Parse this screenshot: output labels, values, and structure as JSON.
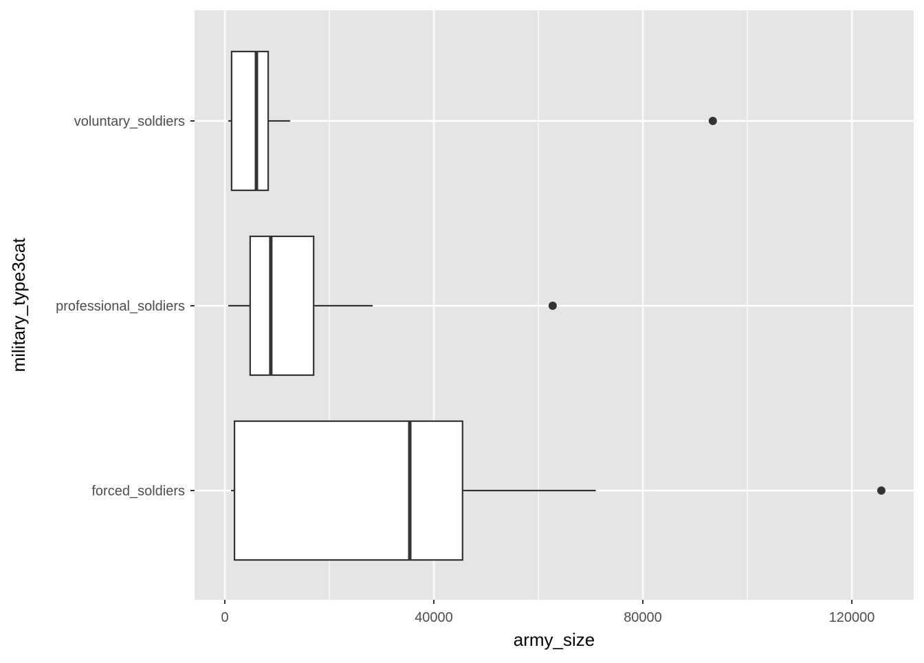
{
  "chart_data": {
    "type": "boxplot",
    "orientation": "horizontal",
    "title": "",
    "xlabel": "army_size",
    "ylabel": "military_type3cat",
    "xlim": [
      -5800,
      132000
    ],
    "x_ticks": [
      0,
      40000,
      80000,
      120000
    ],
    "x_tick_labels": [
      "0",
      "40000",
      "80000",
      "120000"
    ],
    "grid": true,
    "legend": null,
    "categories": [
      "voluntary_soldiers",
      "professional_soldiers",
      "forced_soldiers"
    ],
    "series": [
      {
        "name": "voluntary_soldiers",
        "whisker_low": 650,
        "q1": 1300,
        "median": 6050,
        "q3": 8300,
        "whisker_high": 12500,
        "outliers": [
          93400
        ]
      },
      {
        "name": "professional_soldiers",
        "whisker_low": 650,
        "q1": 4850,
        "median": 8800,
        "q3": 17000,
        "whisker_high": 28300,
        "outliers": [
          62750
        ]
      },
      {
        "name": "forced_soldiers",
        "whisker_low": 1200,
        "q1": 1850,
        "median": 35400,
        "q3": 45500,
        "whisker_high": 71000,
        "outliers": [
          125650
        ]
      }
    ],
    "colors": {
      "panel_bg": "#e5e5e5",
      "grid": "#ffffff",
      "box_fill": "#ffffff",
      "box_line": "#333333",
      "text": "#4d4d4d",
      "title_text": "#000000"
    }
  }
}
